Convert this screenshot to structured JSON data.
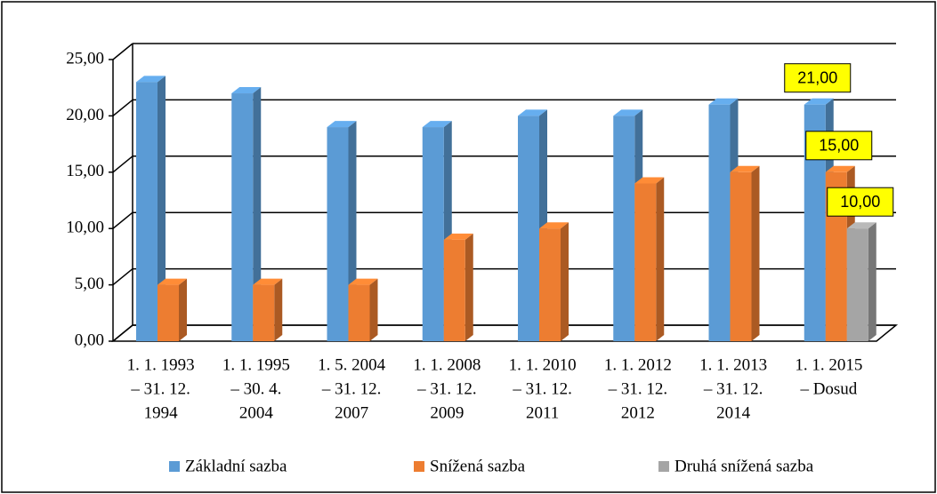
{
  "chart_data": {
    "type": "bar3d",
    "categories": [
      [
        "1. 1. 1993",
        "– 31. 12.",
        "1994"
      ],
      [
        "1. 1. 1995",
        "– 30. 4.",
        "2004"
      ],
      [
        "1. 5. 2004",
        "– 31. 12.",
        "2007"
      ],
      [
        "1. 1. 2008",
        "– 31. 12.",
        "2009"
      ],
      [
        "1. 1. 2010",
        "– 31. 12.",
        "2011"
      ],
      [
        "1. 1. 2012",
        "– 31. 12.",
        "2012"
      ],
      [
        "1. 1. 2013",
        "– 31. 12.",
        "2014"
      ],
      [
        "1. 1. 2015",
        "– Dosud"
      ]
    ],
    "series": [
      {
        "name": "Základní sazba",
        "color": "#5b9bd5",
        "values": [
          23,
          22,
          19,
          19,
          20,
          20,
          21,
          21
        ],
        "value_labels": [
          null,
          null,
          null,
          null,
          null,
          null,
          null,
          "21,00"
        ]
      },
      {
        "name": "Snížená sazba",
        "color": "#ed7d31",
        "values": [
          5,
          5,
          5,
          9,
          10,
          14,
          15,
          15
        ],
        "value_labels": [
          null,
          null,
          null,
          null,
          null,
          null,
          null,
          "15,00"
        ]
      },
      {
        "name": "Druhá snížená sazba",
        "color": "#a5a5a5",
        "values": [
          null,
          null,
          null,
          null,
          null,
          null,
          null,
          10
        ],
        "value_labels": [
          null,
          null,
          null,
          null,
          null,
          null,
          null,
          "10,00"
        ]
      }
    ],
    "ylim": [
      0,
      25
    ],
    "yticks": [
      {
        "value": 0,
        "label": "0,00"
      },
      {
        "value": 5,
        "label": "5,00"
      },
      {
        "value": 10,
        "label": "10,00"
      },
      {
        "value": 15,
        "label": "15,00"
      },
      {
        "value": 20,
        "label": "20,00"
      },
      {
        "value": 25,
        "label": "25,00"
      }
    ],
    "grid": true,
    "legend": "bottom"
  }
}
